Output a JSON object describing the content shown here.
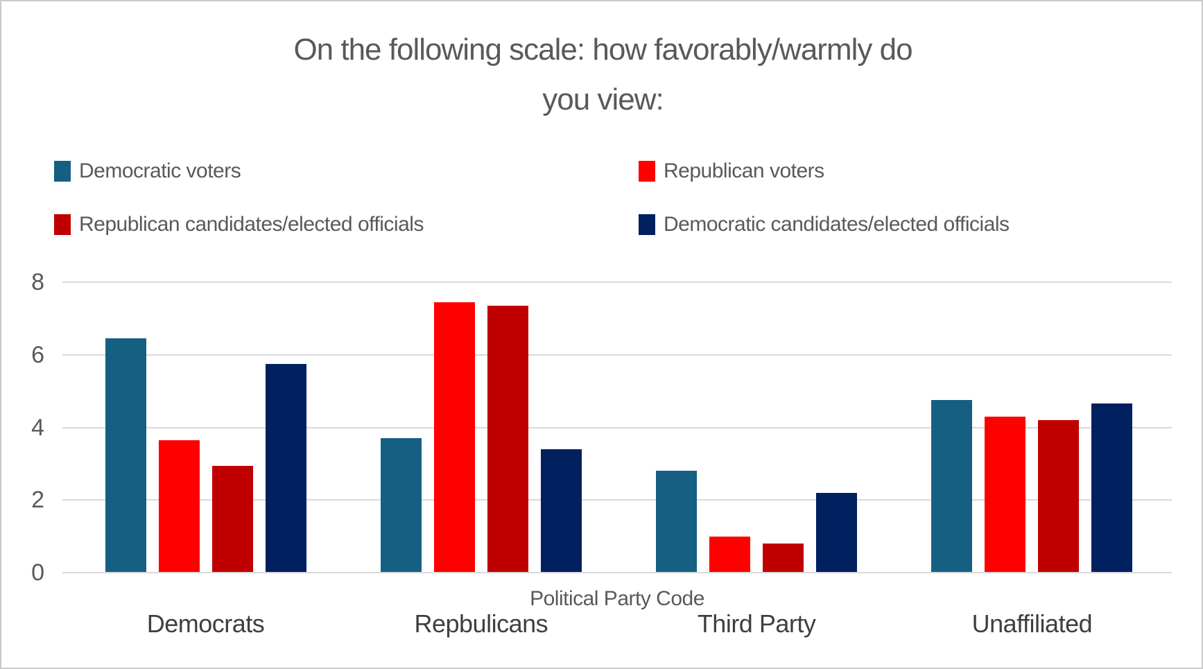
{
  "chart_data": {
    "type": "bar",
    "title": "On the following scale: how favorably/warmly do you view:",
    "title_lines": [
      "On the following scale: how favorably/warmly do",
      "you view:"
    ],
    "xlabel": "Political Party Code",
    "ylabel": "",
    "ylim": [
      0,
      8
    ],
    "yticks": [
      0,
      2,
      4,
      6,
      8
    ],
    "grid": true,
    "legend_position": "top, two columns, two rows",
    "categories": [
      "Democrats",
      "Repbulicans",
      "Third Party",
      "Unaffiliated"
    ],
    "series": [
      {
        "name": "Democratic voters",
        "color": "#156082",
        "values": [
          6.45,
          3.7,
          2.8,
          4.75
        ]
      },
      {
        "name": "Republican voters",
        "color": "#ff0000",
        "values": [
          3.65,
          7.45,
          1.0,
          4.3
        ]
      },
      {
        "name": "Republican candidates/elected officials",
        "color": "#c00000",
        "values": [
          2.95,
          7.35,
          0.8,
          4.2
        ]
      },
      {
        "name": "Democratic candidates/elected officials",
        "color": "#002060",
        "values": [
          5.75,
          3.4,
          2.2,
          4.65
        ]
      }
    ],
    "colors": {
      "grid": "#d9d9d9",
      "title_text": "#595959",
      "tick_text": "#595959",
      "category_text": "#3f3f3f"
    }
  }
}
